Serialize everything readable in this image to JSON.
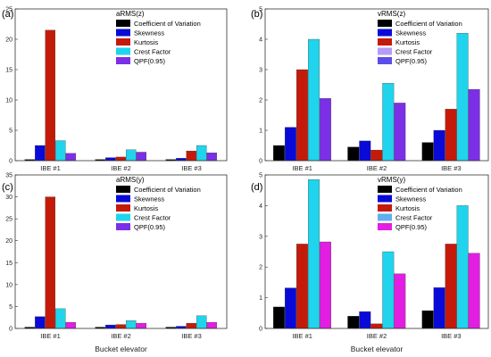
{
  "colors": {
    "Coefficient of Variation": "#000000",
    "Skewness": "#0a0ad8",
    "Kurtosis": "#c41a0a",
    "Crest Factor": "#1fd4ec",
    "QPF(0.95)": "#7b2fe6",
    "QPF(0.95)-alt": "#e11ee1"
  },
  "x_axis_label": "Bucket elevator",
  "chart_data": [
    {
      "panel": "(a)",
      "type": "bar",
      "title": "aRMS(z)",
      "categories": [
        "IBE #1",
        "IBE #2",
        "IBE #3"
      ],
      "ylim": [
        0,
        25
      ],
      "yticks": [
        0,
        5,
        10,
        15,
        20,
        25
      ],
      "legend": "top-right",
      "series": [
        {
          "name": "Coefficient of Variation",
          "values": [
            0.2,
            0.2,
            0.2
          ]
        },
        {
          "name": "Skewness",
          "values": [
            2.5,
            0.5,
            0.4
          ]
        },
        {
          "name": "Kurtosis",
          "values": [
            21.5,
            0.6,
            1.6
          ]
        },
        {
          "name": "Crest Factor",
          "values": [
            3.3,
            1.8,
            2.5
          ]
        },
        {
          "name": "QPF(0.95)",
          "values": [
            1.2,
            1.4,
            1.3
          ]
        }
      ]
    },
    {
      "panel": "(b)",
      "type": "bar",
      "title": "vRMS(z)",
      "categories": [
        "IBE #1",
        "IBE #2",
        "IBE #3"
      ],
      "ylim": [
        0,
        5
      ],
      "yticks": [
        0,
        1,
        2,
        3,
        4,
        5
      ],
      "legend": "top-right",
      "series": [
        {
          "name": "Coefficient of Variation",
          "values": [
            0.5,
            0.45,
            0.6
          ]
        },
        {
          "name": "Skewness",
          "values": [
            1.1,
            0.65,
            1.0
          ]
        },
        {
          "name": "Kurtosis",
          "values": [
            3.0,
            0.35,
            1.7
          ]
        },
        {
          "name": "Crest Factor",
          "values": [
            4.0,
            2.55,
            4.2
          ]
        },
        {
          "name": "QPF(0.95)",
          "values": [
            2.05,
            1.9,
            2.35
          ]
        }
      ]
    },
    {
      "panel": "(c)",
      "type": "bar",
      "title": "aRMS(y)",
      "categories": [
        "IBE #1",
        "IBE #2",
        "IBE #3"
      ],
      "ylim": [
        0,
        35
      ],
      "yticks": [
        0,
        5,
        10,
        15,
        20,
        25,
        30,
        35
      ],
      "legend": "top-right",
      "series": [
        {
          "name": "Coefficient of Variation",
          "values": [
            0.3,
            0.3,
            0.3
          ]
        },
        {
          "name": "Skewness",
          "values": [
            2.7,
            0.8,
            0.5
          ]
        },
        {
          "name": "Kurtosis",
          "values": [
            30.0,
            0.9,
            1.2
          ]
        },
        {
          "name": "Crest Factor",
          "values": [
            4.5,
            1.8,
            2.9
          ]
        },
        {
          "name": "QPF(0.95)",
          "values": [
            1.4,
            1.2,
            1.4
          ]
        }
      ]
    },
    {
      "panel": "(d)",
      "type": "bar",
      "title": "vRMS(y)",
      "categories": [
        "IBE #1",
        "IBE #2",
        "IBE #3"
      ],
      "ylim": [
        0,
        5
      ],
      "yticks": [
        0,
        1,
        2,
        3,
        4,
        5
      ],
      "legend": "top-right",
      "series": [
        {
          "name": "Coefficient of Variation",
          "values": [
            0.7,
            0.4,
            0.58
          ]
        },
        {
          "name": "Skewness",
          "values": [
            1.32,
            0.55,
            1.33
          ]
        },
        {
          "name": "Kurtosis",
          "values": [
            2.75,
            0.15,
            2.75
          ]
        },
        {
          "name": "Crest Factor",
          "values": [
            4.85,
            2.5,
            4.0
          ]
        },
        {
          "name": "QPF(0.95)",
          "values": [
            2.82,
            1.78,
            2.45
          ]
        }
      ]
    }
  ]
}
